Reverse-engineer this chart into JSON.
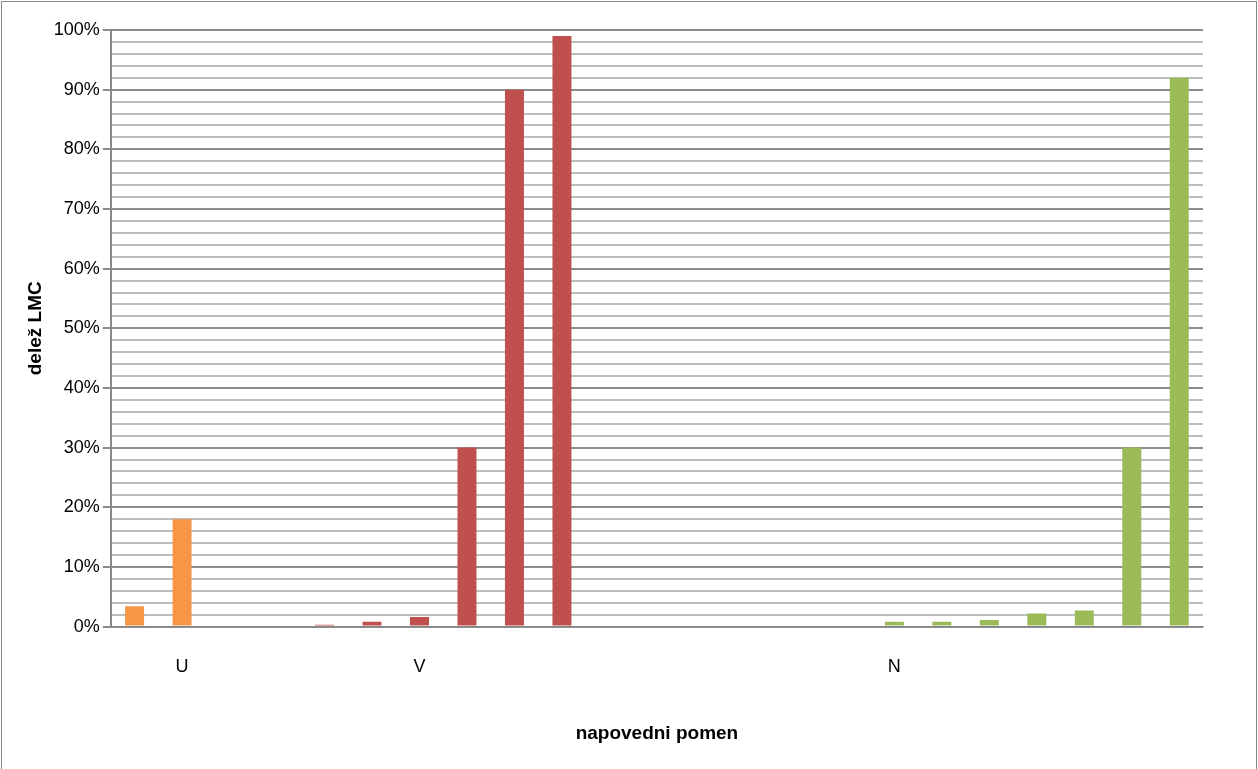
{
  "chart_data": {
    "type": "bar",
    "xlabel": "napovedni pomen",
    "ylabel": "delež LMC",
    "categories": [
      null,
      "U",
      null,
      null,
      null,
      null,
      "V",
      null,
      null,
      null,
      null,
      null,
      null,
      null,
      null,
      null,
      "N",
      null,
      null,
      null,
      null,
      null,
      null
    ],
    "values": [
      3.4,
      18,
      null,
      null,
      0.3,
      0.8,
      1.6,
      30,
      90,
      99,
      0.2,
      0.2,
      0.2,
      0.2,
      0.2,
      0.2,
      0.8,
      0.8,
      1.1,
      2.2,
      2.7,
      30,
      92
    ],
    "colors": [
      "#f79646",
      "#f79646",
      "#f79646",
      "#f79646",
      "#c0504d",
      "#c0504d",
      "#c0504d",
      "#c0504d",
      "#c0504d",
      "#c0504d",
      "#9bbb59",
      "#9bbb59",
      "#9bbb59",
      "#9bbb59",
      "#9bbb59",
      "#9bbb59",
      "#9bbb59",
      "#9bbb59",
      "#9bbb59",
      "#9bbb59",
      "#9bbb59",
      "#9bbb59",
      "#9bbb59"
    ],
    "ylim": [
      0,
      100
    ],
    "yticks": [
      {
        "value": 0,
        "label": "0%"
      },
      {
        "value": 2,
        "label": null
      },
      {
        "value": 4,
        "label": null
      },
      {
        "value": 6,
        "label": null
      },
      {
        "value": 8,
        "label": null
      },
      {
        "value": 10,
        "label": "10%"
      },
      {
        "value": 12,
        "label": null
      },
      {
        "value": 14,
        "label": null
      },
      {
        "value": 16,
        "label": null
      },
      {
        "value": 18,
        "label": null
      },
      {
        "value": 20,
        "label": "20%"
      },
      {
        "value": 22,
        "label": null
      },
      {
        "value": 24,
        "label": null
      },
      {
        "value": 26,
        "label": null
      },
      {
        "value": 28,
        "label": null
      },
      {
        "value": 30,
        "label": "30%"
      },
      {
        "value": 32,
        "label": null
      },
      {
        "value": 34,
        "label": null
      },
      {
        "value": 36,
        "label": null
      },
      {
        "value": 38,
        "label": null
      },
      {
        "value": 40,
        "label": "40%"
      },
      {
        "value": 42,
        "label": null
      },
      {
        "value": 44,
        "label": null
      },
      {
        "value": 46,
        "label": null
      },
      {
        "value": 48,
        "label": null
      },
      {
        "value": 50,
        "label": "50%"
      },
      {
        "value": 52,
        "label": null
      },
      {
        "value": 54,
        "label": null
      },
      {
        "value": 56,
        "label": null
      },
      {
        "value": 58,
        "label": null
      },
      {
        "value": 60,
        "label": "60%"
      },
      {
        "value": 62,
        "label": null
      },
      {
        "value": 64,
        "label": null
      },
      {
        "value": 66,
        "label": null
      },
      {
        "value": 68,
        "label": null
      },
      {
        "value": 70,
        "label": "70%"
      },
      {
        "value": 72,
        "label": null
      },
      {
        "value": 74,
        "label": null
      },
      {
        "value": 76,
        "label": null
      },
      {
        "value": 78,
        "label": null
      },
      {
        "value": 80,
        "label": "80%"
      },
      {
        "value": 82,
        "label": null
      },
      {
        "value": 84,
        "label": null
      },
      {
        "value": 86,
        "label": null
      },
      {
        "value": 88,
        "label": null
      },
      {
        "value": 90,
        "label": "90%"
      },
      {
        "value": 92,
        "label": null
      },
      {
        "value": 94,
        "label": null
      },
      {
        "value": 96,
        "label": null
      },
      {
        "value": 98,
        "label": null
      },
      {
        "value": 100,
        "label": "100%"
      }
    ],
    "grid": "y",
    "legend": false
  }
}
